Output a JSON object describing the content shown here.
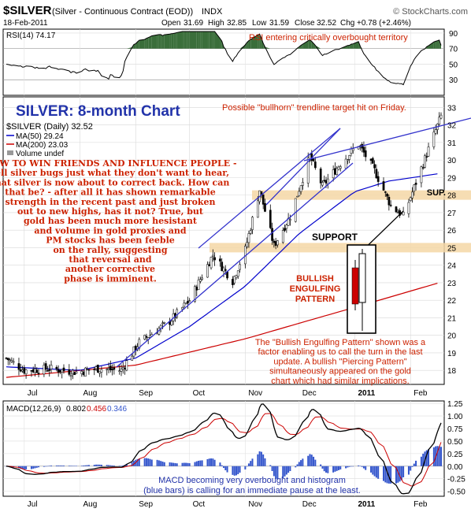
{
  "header": {
    "symbol": "$SILVER",
    "name": "(Silver - Continuous Contract (EOD))",
    "exchange": "INDX",
    "source": "© StockCharts.com",
    "date": "18-Feb-2011",
    "open_label": "Open",
    "open": "31.69",
    "high_label": "High",
    "high": "32.85",
    "low_label": "Low",
    "low": "31.59",
    "close_label": "Close",
    "close": "32.52",
    "chg_label": "Chg",
    "chg": "+0.78 (+2.46%)"
  },
  "rsi": {
    "legend": "RSI(14) 74.17",
    "annotation": "RSI entering critically overbought territory",
    "ticks": [
      30,
      50,
      70,
      90
    ]
  },
  "main": {
    "title": "SILVER: 8-month Chart",
    "top_annotation": "Possible \"bullhorn\" trendline target hit on Friday.",
    "legend": {
      "price": "$SILVER (Daily) 32.52",
      "ma50": "MA(50) 29.24",
      "ma200": "MA(200) 23.03",
      "volume": "Volume undef"
    },
    "commentary": [
      "HOW TO WIN FRIENDS AND INFLUENCE PEOPLE -",
      "tell silver bugs just what they don't want to hear,",
      "that silver is now about to correct back. How can",
      "that be? - after all it has shown remarkable",
      "strength in the recent past and just broken",
      "out to new highs, has it not? True, but",
      "gold has been much more hesistant",
      "and volume in gold proxies and",
      "PM stocks has been feeble",
      "on the rally, suggesting",
      "that reversal and",
      "another corrective",
      "phase is imminent."
    ],
    "support_label": "SUPPORT",
    "sup_label": "SUP.",
    "pattern_label": [
      "BULLISH",
      "ENGULFING",
      "PATTERN"
    ],
    "bottom_annotation": [
      "The \"Bullish Engulfing Pattern\" shown was a",
      "factor enabling us to call the turn in the last",
      "update. A bullish \"Piercing Pattern\"",
      "simultaneously appeared on the gold",
      "chart which had similar implications."
    ],
    "ticks": [
      18,
      19,
      20,
      21,
      22,
      23,
      24,
      25,
      26,
      27,
      28,
      29,
      30,
      31,
      32,
      33
    ]
  },
  "macd": {
    "legend_name": "MACD(12,26,9)",
    "macd_value": "0.802",
    "signal_value": "0.456",
    "hist_value": "0.346",
    "annotation": [
      "MACD becoming very overbought and histogram",
      "(blue bars) is calling for an immediate pause at the least."
    ],
    "ticks": [
      "1.25",
      "1.00",
      "0.75",
      "0.50",
      "0.25",
      "0.00",
      "-0.25",
      "-0.50"
    ]
  },
  "x_axis": {
    "labels": [
      "Jul",
      "Aug",
      "Sep",
      "Oct",
      "Nov",
      "Dec",
      "2011",
      "Feb"
    ]
  },
  "colors": {
    "price_bars": "#000000",
    "ma50": "#0000cc",
    "ma200": "#cc0000",
    "trendline": "#3333cc",
    "support_band": "#f5d7a6",
    "annotation_red": "#cc2200",
    "title_blue": "#2233aa",
    "rsi_fill": "#3a6e3a",
    "macd_hist": "#3355cc"
  },
  "chart_data": {
    "type": "line",
    "title": "SILVER: 8-month Chart",
    "x_range": [
      "2010-06-21",
      "2011-02-18"
    ],
    "y_range": [
      17.2,
      33.6
    ],
    "price_path": [
      [
        "2010-06-21",
        18.7
      ],
      [
        "2010-07-01",
        18.0
      ],
      [
        "2010-07-15",
        18.1
      ],
      [
        "2010-07-30",
        17.9
      ],
      [
        "2010-08-10",
        18.1
      ],
      [
        "2010-08-24",
        18.0
      ],
      [
        "2010-09-03",
        19.6
      ],
      [
        "2010-09-20",
        20.8
      ],
      [
        "2010-10-01",
        22.0
      ],
      [
        "2010-10-14",
        24.6
      ],
      [
        "2010-10-25",
        23.1
      ],
      [
        "2010-11-01",
        24.9
      ],
      [
        "2010-11-09",
        28.3
      ],
      [
        "2010-11-17",
        25.1
      ],
      [
        "2010-11-26",
        26.8
      ],
      [
        "2010-12-07",
        30.2
      ],
      [
        "2010-12-14",
        28.5
      ],
      [
        "2010-12-24",
        29.8
      ],
      [
        "2011-01-03",
        30.9
      ],
      [
        "2011-01-12",
        29.4
      ],
      [
        "2011-01-21",
        27.4
      ],
      [
        "2011-01-28",
        26.8
      ],
      [
        "2011-02-08",
        29.8
      ],
      [
        "2011-02-18",
        32.5
      ]
    ],
    "ma50": [
      [
        "2010-06-21",
        18.2
      ],
      [
        "2010-08-01",
        18.0
      ],
      [
        "2010-09-01",
        18.7
      ],
      [
        "2010-10-01",
        20.5
      ],
      [
        "2010-11-01",
        22.8
      ],
      [
        "2010-12-01",
        25.8
      ],
      [
        "2011-01-01",
        28.2
      ],
      [
        "2011-01-20",
        28.8
      ],
      [
        "2011-02-18",
        29.24
      ]
    ],
    "ma200": [
      [
        "2010-06-21",
        17.6
      ],
      [
        "2010-09-01",
        18.3
      ],
      [
        "2010-11-01",
        19.8
      ],
      [
        "2011-01-01",
        21.6
      ],
      [
        "2011-02-18",
        23.03
      ]
    ],
    "support_levels": [
      25,
      28
    ],
    "rsi_ylim": [
      10,
      95
    ],
    "rsi_last": 74.17,
    "macd_ylim": [
      -0.6,
      1.3
    ],
    "macd_last": 0.802,
    "signal_last": 0.456,
    "histogram_last": 0.346
  }
}
